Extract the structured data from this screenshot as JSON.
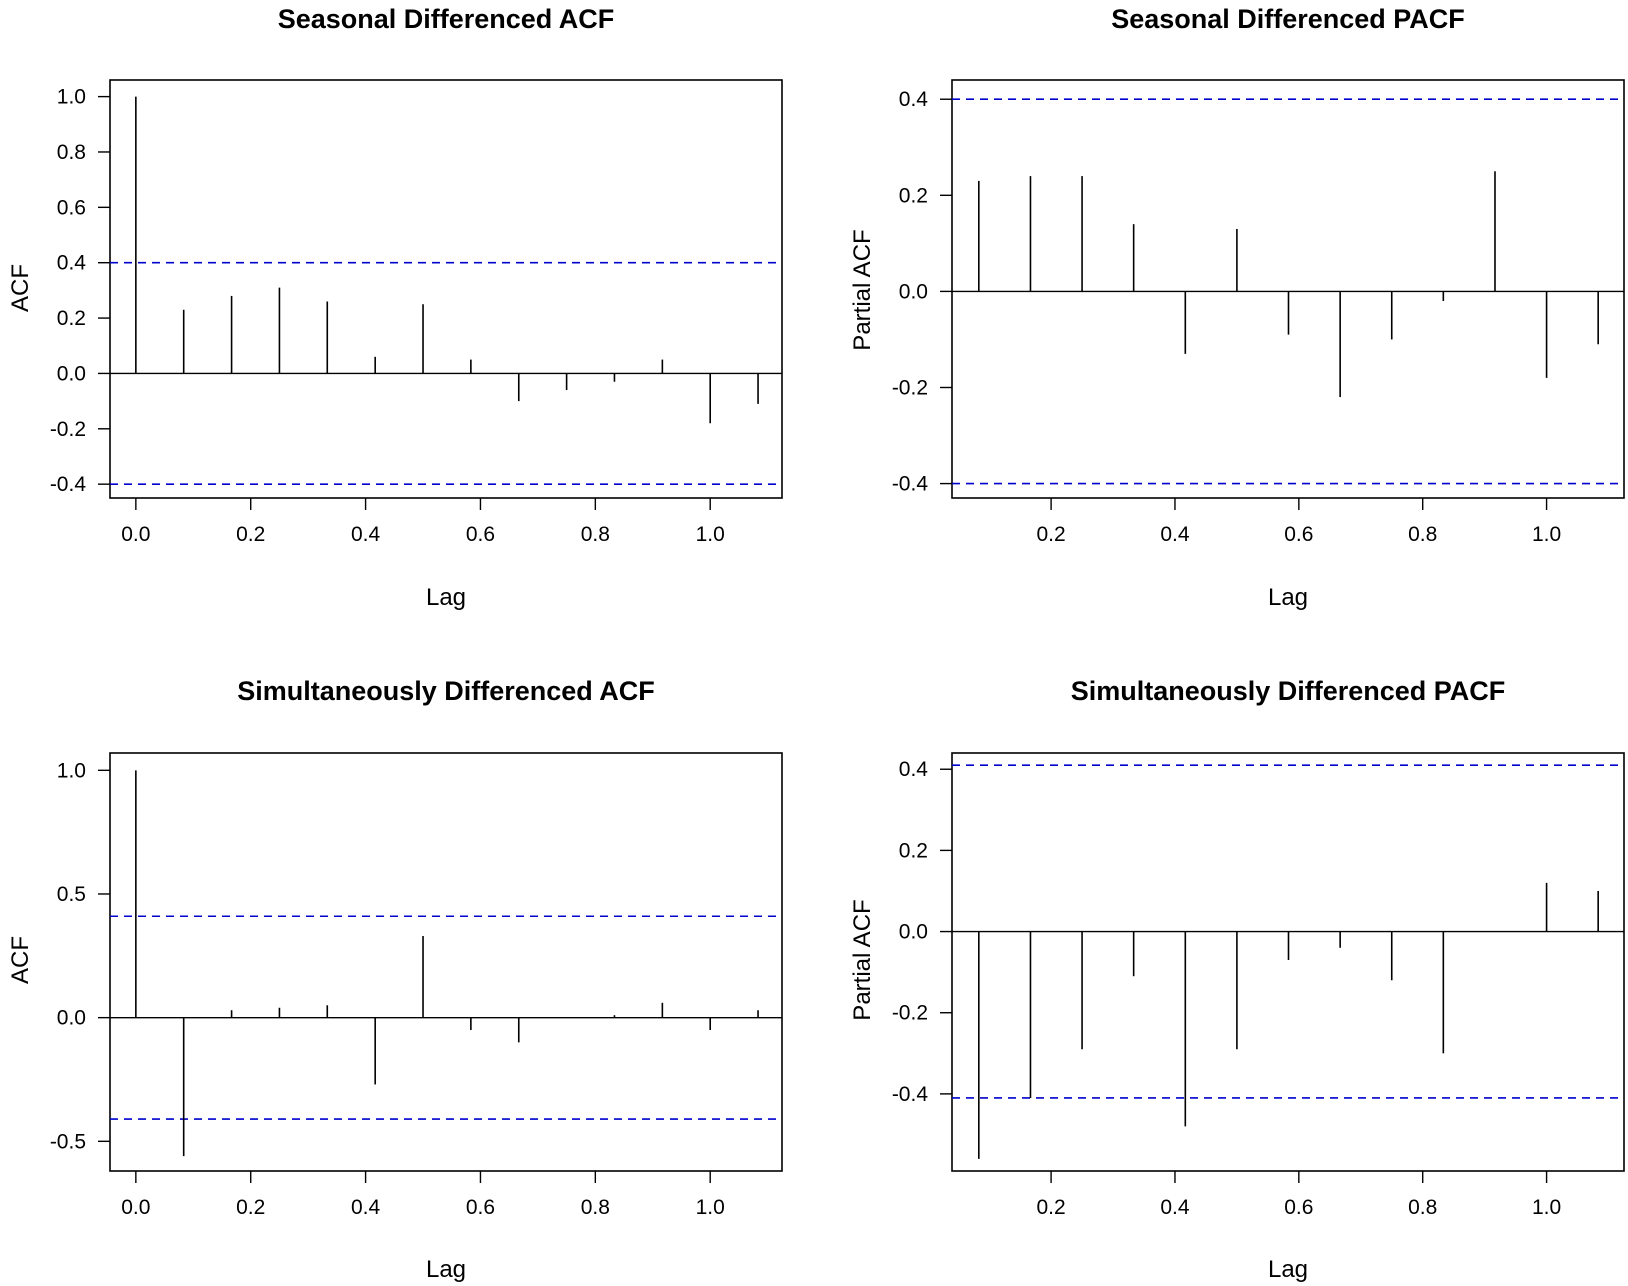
{
  "chart_data": [
    {
      "type": "bar",
      "title": "Seasonal Differenced ACF",
      "xlabel": "Lag",
      "ylabel": "ACF",
      "xlim": [
        -0.045,
        1.125
      ],
      "ylim": [
        -0.45,
        1.06
      ],
      "xticks": [
        0.0,
        0.2,
        0.4,
        0.6,
        0.8,
        1.0
      ],
      "xtick_labels": [
        "0.0",
        "0.2",
        "0.4",
        "0.6",
        "0.8",
        "1.0"
      ],
      "yticks": [
        1.0,
        0.8,
        0.6,
        0.4,
        0.2,
        0.0,
        -0.2,
        -0.4
      ],
      "ytick_labels": [
        "1.0",
        "0.8",
        "0.6",
        "0.4",
        "0.2",
        "0.0",
        "-0.2",
        "-0.4"
      ],
      "conf_band": 0.4,
      "lags": [
        0.0,
        0.0833,
        0.1667,
        0.25,
        0.3333,
        0.4167,
        0.5,
        0.5833,
        0.6667,
        0.75,
        0.8333,
        0.9167,
        1.0,
        1.0833
      ],
      "values": [
        1.0,
        0.23,
        0.28,
        0.31,
        0.26,
        0.06,
        0.25,
        0.05,
        -0.1,
        -0.06,
        -0.03,
        0.05,
        -0.18,
        -0.11
      ],
      "colors": {
        "bars": "#000000",
        "band": "#0000CD"
      }
    },
    {
      "type": "bar",
      "title": "Seasonal Differenced PACF",
      "xlabel": "Lag",
      "ylabel": "Partial ACF",
      "xlim": [
        0.04,
        1.125
      ],
      "ylim": [
        -0.43,
        0.44
      ],
      "xticks": [
        0.2,
        0.4,
        0.6,
        0.8,
        1.0
      ],
      "xtick_labels": [
        "0.2",
        "0.4",
        "0.6",
        "0.8",
        "1.0"
      ],
      "yticks": [
        0.4,
        0.2,
        0.0,
        -0.2,
        -0.4
      ],
      "ytick_labels": [
        "0.4",
        "0.2",
        "0.0",
        "-0.2",
        "-0.4"
      ],
      "conf_band": 0.4,
      "lags": [
        0.0833,
        0.1667,
        0.25,
        0.3333,
        0.4167,
        0.5,
        0.5833,
        0.6667,
        0.75,
        0.8333,
        0.9167,
        1.0,
        1.0833
      ],
      "values": [
        0.23,
        0.24,
        0.24,
        0.14,
        -0.13,
        0.13,
        -0.09,
        -0.22,
        -0.1,
        -0.02,
        0.25,
        -0.18,
        -0.11
      ],
      "colors": {
        "bars": "#000000",
        "band": "#0000CD"
      }
    },
    {
      "type": "bar",
      "title": "Simultaneously Differenced ACF",
      "xlabel": "Lag",
      "ylabel": "ACF",
      "xlim": [
        -0.045,
        1.125
      ],
      "ylim": [
        -0.62,
        1.07
      ],
      "xticks": [
        0.0,
        0.2,
        0.4,
        0.6,
        0.8,
        1.0
      ],
      "xtick_labels": [
        "0.0",
        "0.2",
        "0.4",
        "0.6",
        "0.8",
        "1.0"
      ],
      "yticks": [
        1.0,
        0.5,
        0.0,
        -0.5
      ],
      "ytick_labels": [
        "1.0",
        "0.5",
        "0.0",
        "-0.5"
      ],
      "conf_band": 0.41,
      "lags": [
        0.0,
        0.0833,
        0.1667,
        0.25,
        0.3333,
        0.4167,
        0.5,
        0.5833,
        0.6667,
        0.75,
        0.8333,
        0.9167,
        1.0,
        1.0833
      ],
      "values": [
        1.0,
        -0.56,
        0.03,
        0.04,
        0.05,
        -0.27,
        0.33,
        -0.05,
        -0.1,
        0.0,
        0.01,
        0.06,
        -0.05,
        0.03
      ],
      "colors": {
        "bars": "#000000",
        "band": "#0000CD"
      }
    },
    {
      "type": "bar",
      "title": "Simultaneously Differenced PACF",
      "xlabel": "Lag",
      "ylabel": "Partial ACF",
      "xlim": [
        0.04,
        1.125
      ],
      "ylim": [
        -0.59,
        0.44
      ],
      "xticks": [
        0.2,
        0.4,
        0.6,
        0.8,
        1.0
      ],
      "xtick_labels": [
        "0.2",
        "0.4",
        "0.6",
        "0.8",
        "1.0"
      ],
      "yticks": [
        0.4,
        0.2,
        0.0,
        -0.2,
        -0.4
      ],
      "ytick_labels": [
        "0.4",
        "0.2",
        "0.0",
        "-0.2",
        "-0.4"
      ],
      "conf_band": 0.41,
      "lags": [
        0.0833,
        0.1667,
        0.25,
        0.3333,
        0.4167,
        0.5,
        0.5833,
        0.6667,
        0.75,
        0.8333,
        0.9167,
        1.0,
        1.0833
      ],
      "values": [
        -0.56,
        -0.41,
        -0.29,
        -0.11,
        -0.48,
        -0.29,
        -0.07,
        -0.04,
        -0.12,
        -0.3,
        0.0,
        0.12,
        0.1
      ],
      "colors": {
        "bars": "#000000",
        "band": "#0000CD"
      }
    }
  ]
}
